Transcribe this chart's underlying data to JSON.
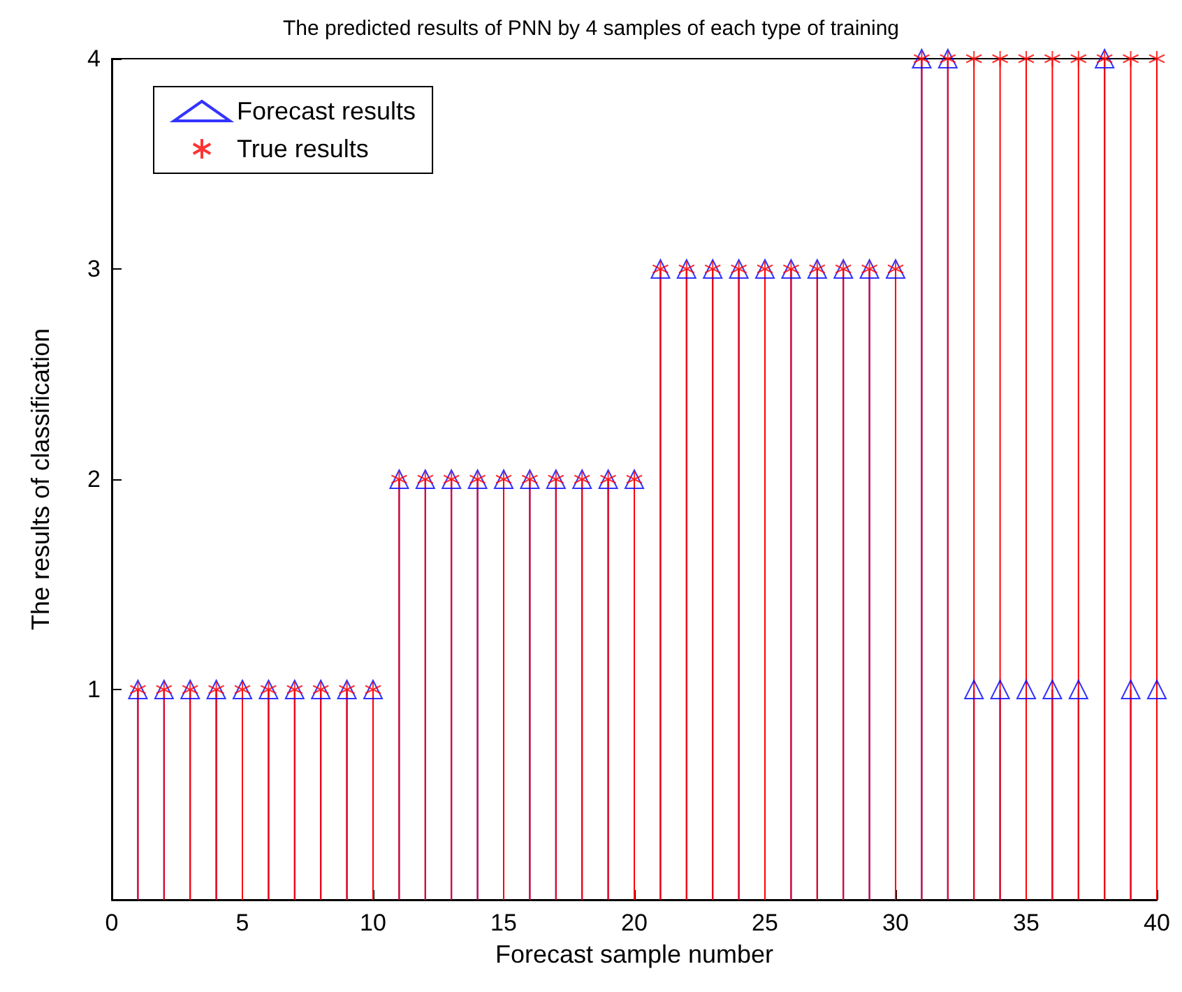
{
  "chart_data": {
    "type": "lollipop",
    "title": "The predicted results of PNN by 4 samples of each type of training",
    "xlabel": "Forecast sample number",
    "ylabel": "The results of classification",
    "x": [
      1,
      2,
      3,
      4,
      5,
      6,
      7,
      8,
      9,
      10,
      11,
      12,
      13,
      14,
      15,
      16,
      17,
      18,
      19,
      20,
      21,
      22,
      23,
      24,
      25,
      26,
      27,
      28,
      29,
      30,
      31,
      32,
      33,
      34,
      35,
      36,
      37,
      38,
      39,
      40
    ],
    "series": [
      {
        "name": "Forecast results",
        "color": "#0000ff",
        "marker": "triangle",
        "values": [
          1,
          1,
          1,
          1,
          1,
          1,
          1,
          1,
          1,
          1,
          2,
          2,
          2,
          2,
          2,
          2,
          2,
          2,
          2,
          2,
          3,
          3,
          3,
          3,
          3,
          3,
          3,
          3,
          3,
          3,
          4,
          4,
          1,
          1,
          1,
          1,
          1,
          4,
          1,
          1
        ]
      },
      {
        "name": "True results",
        "color": "#ff0000",
        "marker": "cross",
        "values": [
          1,
          1,
          1,
          1,
          1,
          1,
          1,
          1,
          1,
          1,
          2,
          2,
          2,
          2,
          2,
          2,
          2,
          2,
          2,
          2,
          3,
          3,
          3,
          3,
          3,
          3,
          3,
          3,
          3,
          3,
          4,
          4,
          4,
          4,
          4,
          4,
          4,
          4,
          4,
          4
        ]
      }
    ],
    "xlim": [
      0,
      40
    ],
    "xticks": [
      0,
      5,
      10,
      15,
      20,
      25,
      30,
      35,
      40
    ],
    "ylim": [
      0,
      4
    ],
    "yticks": [
      1,
      2,
      3,
      4
    ],
    "legend": "top left"
  }
}
